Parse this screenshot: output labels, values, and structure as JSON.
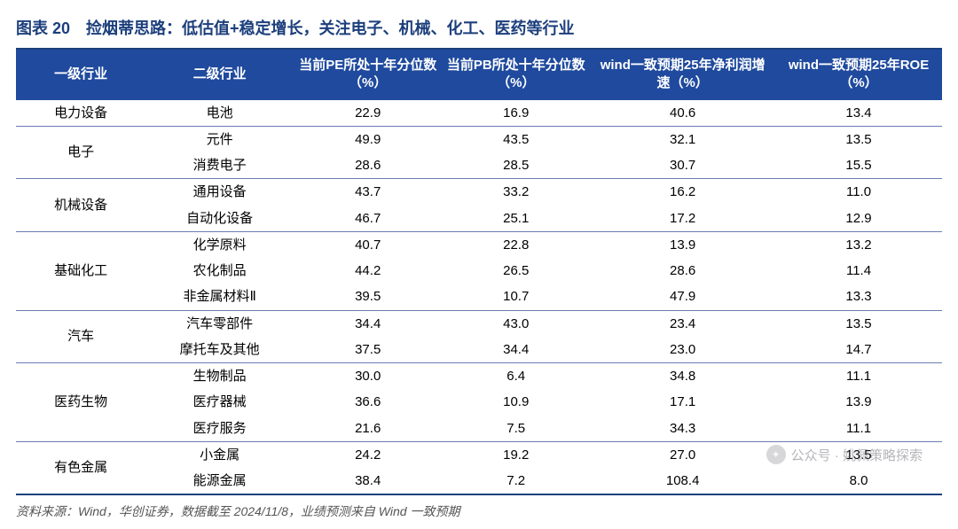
{
  "title": "图表 20　捡烟蒂思路：低估值+稳定增长，关注电子、机械、化工、医药等行业",
  "title_color": "#1c3f7c",
  "header_bg": "#1f4a9e",
  "header_fg": "#ffffff",
  "row_border_color": "#6a7db0",
  "bottom_border_color": "#1c3f7c",
  "font_family": "Microsoft YaHei",
  "columns": [
    "一级行业",
    "二级行业",
    "当前PE所处十年分位数（%）",
    "当前PB所处十年分位数（%）",
    "wind一致预期25年净利润增速（%）",
    "wind一致预期25年ROE（%）"
  ],
  "groups": [
    {
      "lvl1": "电力设备",
      "rows": [
        {
          "lvl2": "电池",
          "pe": "22.9",
          "pb": "16.9",
          "growth": "40.6",
          "roe": "13.4"
        }
      ]
    },
    {
      "lvl1": "电子",
      "rows": [
        {
          "lvl2": "元件",
          "pe": "49.9",
          "pb": "43.5",
          "growth": "32.1",
          "roe": "13.5"
        },
        {
          "lvl2": "消费电子",
          "pe": "28.6",
          "pb": "28.5",
          "growth": "30.7",
          "roe": "15.5"
        }
      ]
    },
    {
      "lvl1": "机械设备",
      "rows": [
        {
          "lvl2": "通用设备",
          "pe": "43.7",
          "pb": "33.2",
          "growth": "16.2",
          "roe": "11.0"
        },
        {
          "lvl2": "自动化设备",
          "pe": "46.7",
          "pb": "25.1",
          "growth": "17.2",
          "roe": "12.9"
        }
      ]
    },
    {
      "lvl1": "基础化工",
      "rows": [
        {
          "lvl2": "化学原料",
          "pe": "40.7",
          "pb": "22.8",
          "growth": "13.9",
          "roe": "13.2"
        },
        {
          "lvl2": "农化制品",
          "pe": "44.2",
          "pb": "26.5",
          "growth": "28.6",
          "roe": "11.4"
        },
        {
          "lvl2": "非金属材料Ⅱ",
          "pe": "39.5",
          "pb": "10.7",
          "growth": "47.9",
          "roe": "13.3"
        }
      ]
    },
    {
      "lvl1": "汽车",
      "rows": [
        {
          "lvl2": "汽车零部件",
          "pe": "34.4",
          "pb": "43.0",
          "growth": "23.4",
          "roe": "13.5"
        },
        {
          "lvl2": "摩托车及其他",
          "pe": "37.5",
          "pb": "34.4",
          "growth": "23.0",
          "roe": "14.7"
        }
      ]
    },
    {
      "lvl1": "医药生物",
      "rows": [
        {
          "lvl2": "生物制品",
          "pe": "30.0",
          "pb": "6.4",
          "growth": "34.8",
          "roe": "11.1"
        },
        {
          "lvl2": "医疗器械",
          "pe": "36.6",
          "pb": "10.9",
          "growth": "17.1",
          "roe": "13.9"
        },
        {
          "lvl2": "医疗服务",
          "pe": "21.6",
          "pb": "7.5",
          "growth": "34.3",
          "roe": "11.1"
        }
      ]
    },
    {
      "lvl1": "有色金属",
      "rows": [
        {
          "lvl2": "小金属",
          "pe": "24.2",
          "pb": "19.2",
          "growth": "27.0",
          "roe": "13.5"
        },
        {
          "lvl2": "能源金属",
          "pe": "38.4",
          "pb": "7.2",
          "growth": "108.4",
          "roe": "8.0"
        }
      ]
    }
  ],
  "source": "资料来源：Wind，华创证券，数据截至 2024/11/8，业绩预测来自 Wind 一致预期",
  "watermark": "公众号 · 姚佩策略探索"
}
